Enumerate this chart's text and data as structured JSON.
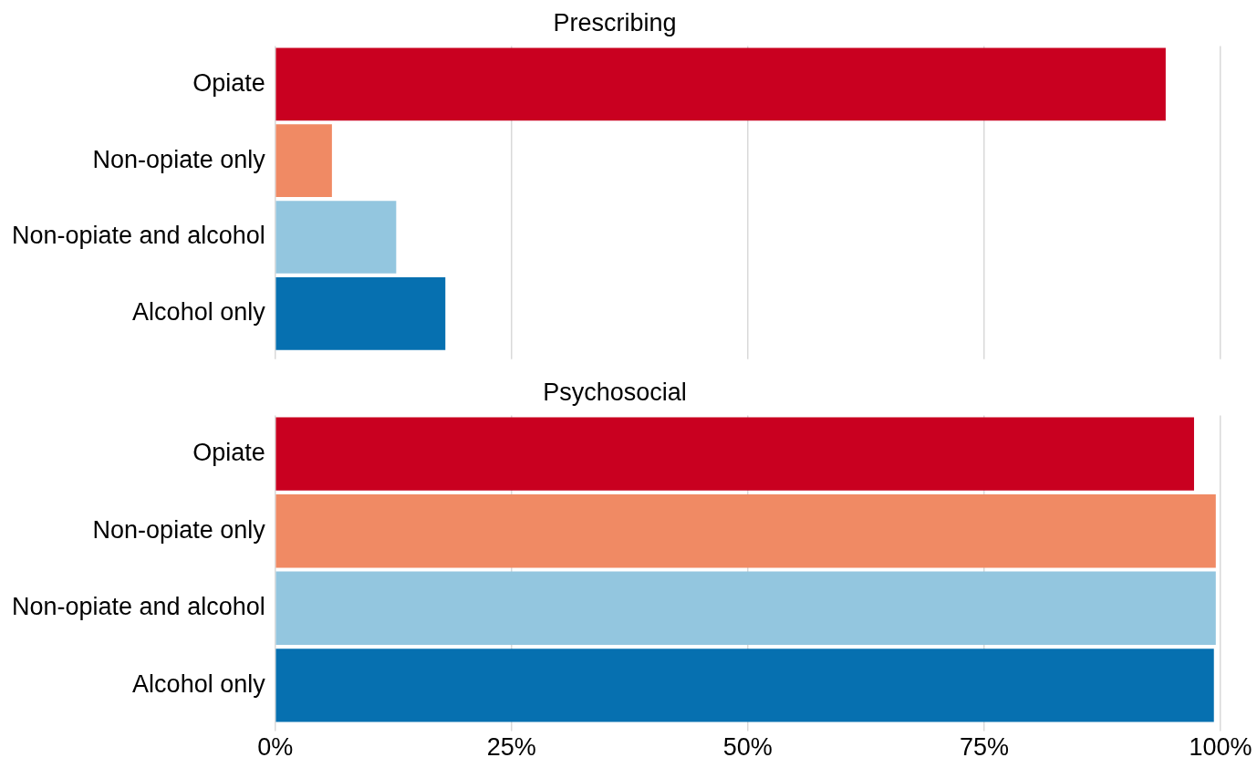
{
  "chart_data": [
    {
      "type": "bar",
      "orientation": "horizontal",
      "title": "Prescribing",
      "categories": [
        "Opiate",
        "Non-opiate only",
        "Non-opiate and alcohol",
        "Alcohol only"
      ],
      "values": [
        94.2,
        6.0,
        12.8,
        18.0
      ],
      "colors": [
        "#c90020",
        "#f08a64",
        "#93c6df",
        "#0670b0"
      ],
      "xlim": [
        0,
        100
      ],
      "xticks": [
        {
          "value": 0,
          "label": null
        },
        {
          "value": 25,
          "label": null
        },
        {
          "value": 50,
          "label": null
        },
        {
          "value": 75,
          "label": null
        },
        {
          "value": 100,
          "label": null
        }
      ],
      "grid": "x",
      "tick_labels": "y"
    },
    {
      "type": "bar",
      "orientation": "horizontal",
      "title": "Psychosocial",
      "categories": [
        "Opiate",
        "Non-opiate only",
        "Non-opiate and alcohol",
        "Alcohol only"
      ],
      "values": [
        97.2,
        99.5,
        99.5,
        99.3
      ],
      "colors": [
        "#c90020",
        "#f08a64",
        "#93c6df",
        "#0670b0"
      ],
      "xlim": [
        0,
        100
      ],
      "xticks": [
        {
          "value": 0,
          "label": "0%"
        },
        {
          "value": 25,
          "label": "25%"
        },
        {
          "value": 50,
          "label": "50%"
        },
        {
          "value": 75,
          "label": "75%"
        },
        {
          "value": 100,
          "label": "100%"
        }
      ],
      "grid": "x"
    }
  ]
}
